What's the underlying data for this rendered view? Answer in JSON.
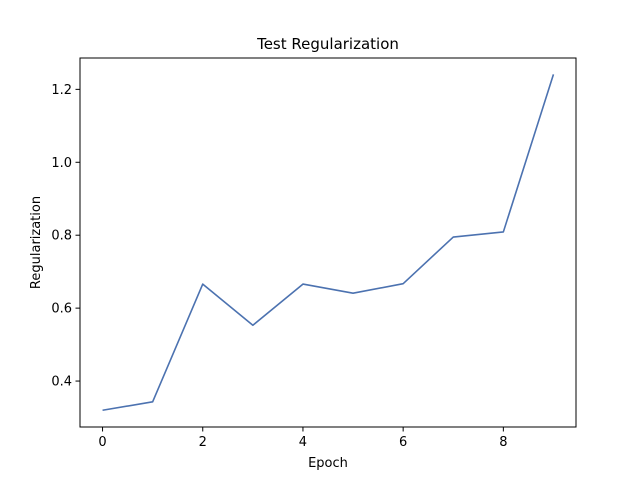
{
  "chart_data": {
    "type": "line",
    "title": "Test Regularization",
    "xlabel": "Epoch",
    "ylabel": "Regularization",
    "x": [
      0,
      1,
      2,
      3,
      4,
      5,
      6,
      7,
      8,
      9
    ],
    "series": [
      {
        "values": [
          0.32,
          0.343,
          0.666,
          0.553,
          0.666,
          0.641,
          0.667,
          0.795,
          0.809,
          1.241
        ],
        "color": "#4c72b0"
      }
    ],
    "xlim": [
      -0.45,
      9.45
    ],
    "ylim": [
      0.274,
      1.286
    ],
    "xticks": [
      0,
      2,
      4,
      6,
      8
    ],
    "xtick_labels": [
      "0",
      "2",
      "4",
      "6",
      "8"
    ],
    "yticks": [
      0.4,
      0.6,
      0.8,
      1.0,
      1.2
    ],
    "ytick_labels": [
      "0.4",
      "0.6",
      "0.8",
      "1.0",
      "1.2"
    ],
    "grid": false,
    "legend": "none"
  }
}
